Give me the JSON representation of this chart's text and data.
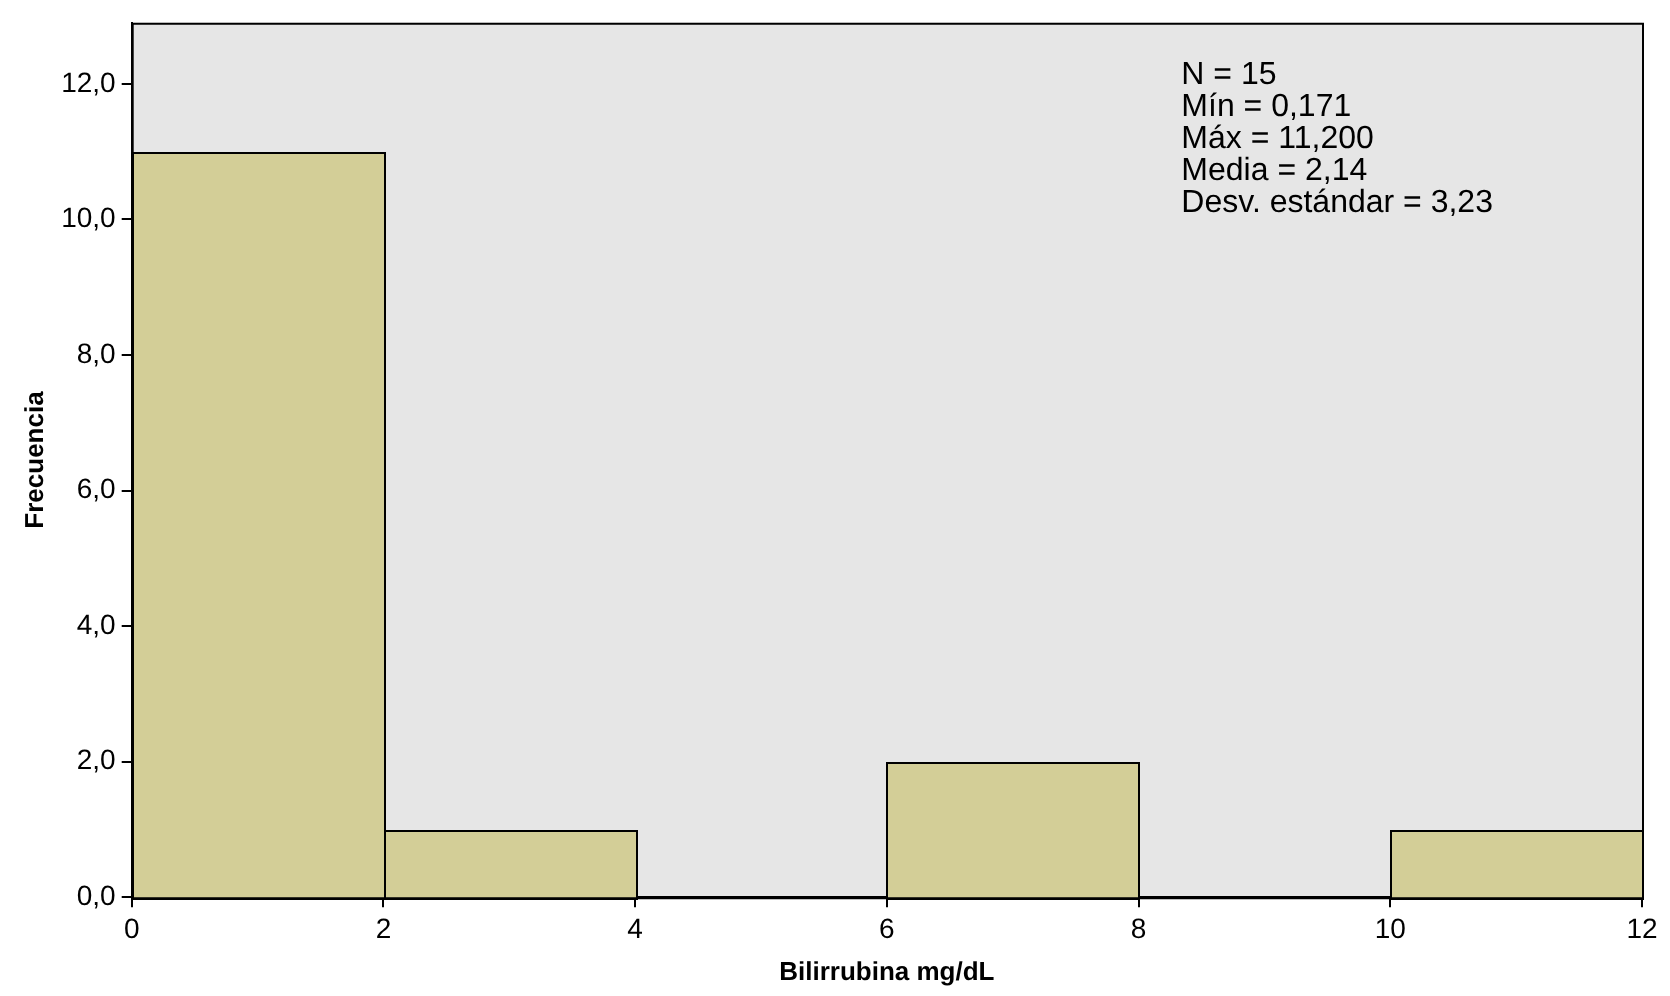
{
  "chart_data": {
    "type": "histogram",
    "xlabel": "Bilirrubina mg/dL",
    "ylabel": "Frecuencia",
    "bins": [
      0,
      2,
      4,
      6,
      8,
      10,
      12
    ],
    "values": [
      11,
      1,
      0,
      2,
      0,
      1
    ],
    "color": "#d3ce97",
    "xlim": [
      0,
      12
    ],
    "xticks": [
      0,
      2,
      4,
      6,
      8,
      10,
      12
    ],
    "ylim": [
      0,
      12.9
    ],
    "yticks": [
      {
        "value": 0,
        "label": "0,0"
      },
      {
        "value": 2,
        "label": "2,0"
      },
      {
        "value": 4,
        "label": "4,0"
      },
      {
        "value": 6,
        "label": "6,0"
      },
      {
        "value": 8,
        "label": "8,0"
      },
      {
        "value": 10,
        "label": "10,0"
      },
      {
        "value": 12,
        "label": "12,0"
      }
    ],
    "annotations": [
      "N = 15",
      "Mín = 0,171",
      "Máx = 11,200",
      "Media = 2,14",
      "Desv. estándar = 3,23"
    ],
    "grid": false,
    "legend": false
  }
}
